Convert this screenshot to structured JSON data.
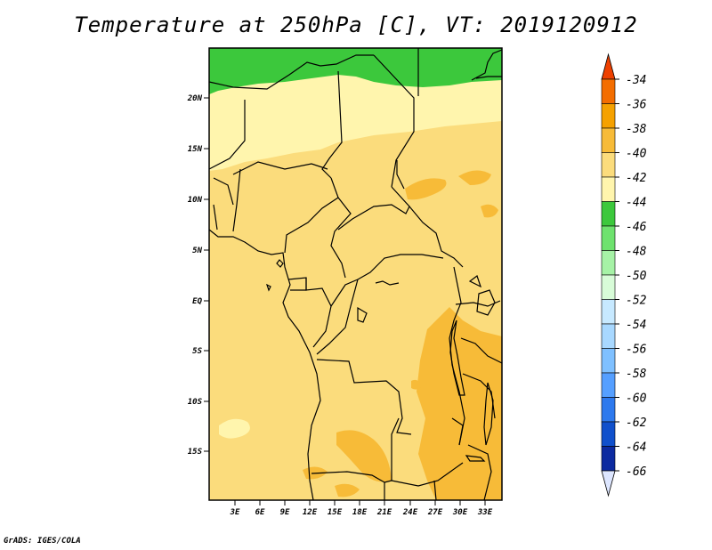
{
  "title": "Temperature at 250hPa [C], VT: 2019120912",
  "credit": "GrADS: IGES/COLA",
  "lat_ticks": [
    "20N",
    "15N",
    "10N",
    "5N",
    "EQ",
    "5S",
    "10S",
    "15S"
  ],
  "lon_ticks": [
    "3E",
    "6E",
    "9E",
    "12E",
    "15E",
    "18E",
    "21E",
    "24E",
    "27E",
    "30E",
    "33E"
  ],
  "colorbar": {
    "labels": [
      "-34",
      "-36",
      "-38",
      "-40",
      "-42",
      "-44",
      "-46",
      "-48",
      "-50",
      "-52",
      "-54",
      "-56",
      "-58",
      "-60",
      "-62",
      "-64",
      "-66"
    ],
    "colors": [
      "#ee4000",
      "#f36d00",
      "#f5a100",
      "#f7bb38",
      "#fbdc7c",
      "#fff5ad",
      "#3cc83c",
      "#6ee26e",
      "#a6f2a6",
      "#d8fcd8",
      "#c7e9ff",
      "#a8d8ff",
      "#7fc0ff",
      "#559fff",
      "#2d79ee",
      "#1050cc",
      "#0c2aa0",
      "#061566",
      "#dde6ff"
    ]
  },
  "legend_colors": {
    "lightest_yellow": "#fff5ad",
    "light_orange": "#fbdc7c",
    "orange": "#f7bb38",
    "green": "#3cc83c"
  }
}
